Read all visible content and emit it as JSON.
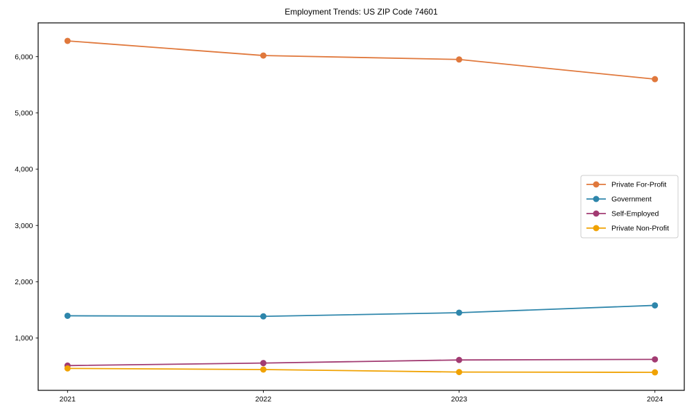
{
  "chart_data": {
    "type": "line",
    "title": "Employment Trends: US ZIP Code 74601",
    "x": [
      2021,
      2022,
      2023,
      2024
    ],
    "x_tick_labels": [
      "2021",
      "2022",
      "2023",
      "2024"
    ],
    "y_ticks": [
      {
        "value": 1000,
        "label": "1,000"
      },
      {
        "value": 2000,
        "label": "2,000"
      },
      {
        "value": 3000,
        "label": "3,000"
      },
      {
        "value": 4000,
        "label": "4,000"
      },
      {
        "value": 5000,
        "label": "5,000"
      },
      {
        "value": 6000,
        "label": "6,000"
      }
    ],
    "xlim": [
      2020.85,
      2024.15
    ],
    "ylim": [
      70,
      6600
    ],
    "xlabel": "",
    "ylabel": "",
    "grid": false,
    "legend_position": "center right",
    "series": [
      {
        "name": "Private For-Profit",
        "color": "#E0783C",
        "values": [
          6280,
          6020,
          5950,
          5600
        ]
      },
      {
        "name": "Government",
        "color": "#2E86AB",
        "values": [
          1395,
          1385,
          1450,
          1580
        ]
      },
      {
        "name": "Self-Employed",
        "color": "#A23B72",
        "values": [
          510,
          555,
          610,
          620
        ]
      },
      {
        "name": "Private Non-Profit",
        "color": "#F0A202",
        "values": [
          460,
          440,
          395,
          390
        ]
      }
    ]
  },
  "figure": {
    "background": "#FFFFFF",
    "frame_color": "#000000",
    "legend_border_color": "#CCCCCC"
  }
}
